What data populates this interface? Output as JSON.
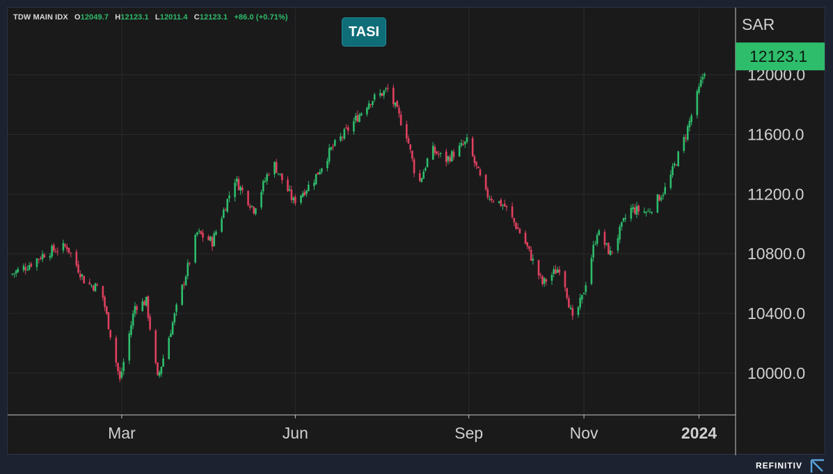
{
  "ohlc": {
    "symbol": "TDW MAIN IDX",
    "open_key": "O",
    "open": "12049.7",
    "high_key": "H",
    "high": "12123.1",
    "low_key": "L",
    "low": "12011.4",
    "close_key": "C",
    "close": "12123.1",
    "change": "+86.0 (+0.71%)"
  },
  "badge": "TASI",
  "footer": {
    "brand": "REFINITIV"
  },
  "colors": {
    "up": "#2ebd6b",
    "down": "#e0405e",
    "background": "#1a1a1b",
    "grid": "#2a2a2c",
    "axis_text": "#d0d0d0",
    "price_tag": "#2ebd6b"
  },
  "chart_data": {
    "type": "candlestick",
    "currency_label": "SAR",
    "last_price": 12123.1,
    "last_price_label": "12123.1",
    "y_ticks": [
      10000.0,
      10400.0,
      10800.0,
      11200.0,
      11600.0,
      12000.0
    ],
    "y_tick_labels": [
      "10000.0",
      "10400.0",
      "10800.0",
      "11200.0",
      "11600.0",
      "12000.0"
    ],
    "ylim": [
      9720,
      12450
    ],
    "x_ticks": [
      {
        "label": "Mar",
        "date": "2023-03-01",
        "bold": false
      },
      {
        "label": "Jun",
        "date": "2023-06-01",
        "bold": false
      },
      {
        "label": "Sep",
        "date": "2023-09-01",
        "bold": false
      },
      {
        "label": "Nov",
        "date": "2023-11-01",
        "bold": false
      },
      {
        "label": "2024",
        "date": "2024-01-01",
        "bold": true
      }
    ],
    "x_range": [
      "2023-01-01",
      "2024-01-13"
    ],
    "grid": true,
    "close_path": [
      [
        "2023-01-01",
        10660
      ],
      [
        "2023-01-10",
        10720
      ],
      [
        "2023-01-20",
        10810
      ],
      [
        "2023-01-31",
        10850
      ],
      [
        "2023-02-10",
        10600
      ],
      [
        "2023-02-18",
        10570
      ],
      [
        "2023-02-24",
        10200
      ],
      [
        "2023-02-28",
        9950
      ],
      [
        "2023-03-08",
        10450
      ],
      [
        "2023-03-14",
        10480
      ],
      [
        "2023-03-20",
        9960
      ],
      [
        "2023-03-31",
        10480
      ],
      [
        "2023-04-10",
        10940
      ],
      [
        "2023-04-18",
        10880
      ],
      [
        "2023-04-30",
        11300
      ],
      [
        "2023-05-10",
        11100
      ],
      [
        "2023-05-20",
        11420
      ],
      [
        "2023-05-31",
        11150
      ],
      [
        "2023-06-10",
        11280
      ],
      [
        "2023-06-20",
        11500
      ],
      [
        "2023-06-30",
        11650
      ],
      [
        "2023-07-10",
        11820
      ],
      [
        "2023-07-20",
        11900
      ],
      [
        "2023-07-30",
        11600
      ],
      [
        "2023-08-05",
        11250
      ],
      [
        "2023-08-12",
        11500
      ],
      [
        "2023-08-20",
        11430
      ],
      [
        "2023-08-31",
        11550
      ],
      [
        "2023-09-10",
        11200
      ],
      [
        "2023-09-20",
        11120
      ],
      [
        "2023-09-30",
        10900
      ],
      [
        "2023-10-10",
        10600
      ],
      [
        "2023-10-20",
        10720
      ],
      [
        "2023-10-26",
        10350
      ],
      [
        "2023-10-31",
        10500
      ],
      [
        "2023-11-08",
        10950
      ],
      [
        "2023-11-15",
        10800
      ],
      [
        "2023-11-25",
        11100
      ],
      [
        "2023-12-05",
        11080
      ],
      [
        "2023-12-15",
        11250
      ],
      [
        "2023-12-25",
        11600
      ],
      [
        "2024-01-01",
        11900
      ],
      [
        "2024-01-06",
        12123.1
      ]
    ]
  }
}
